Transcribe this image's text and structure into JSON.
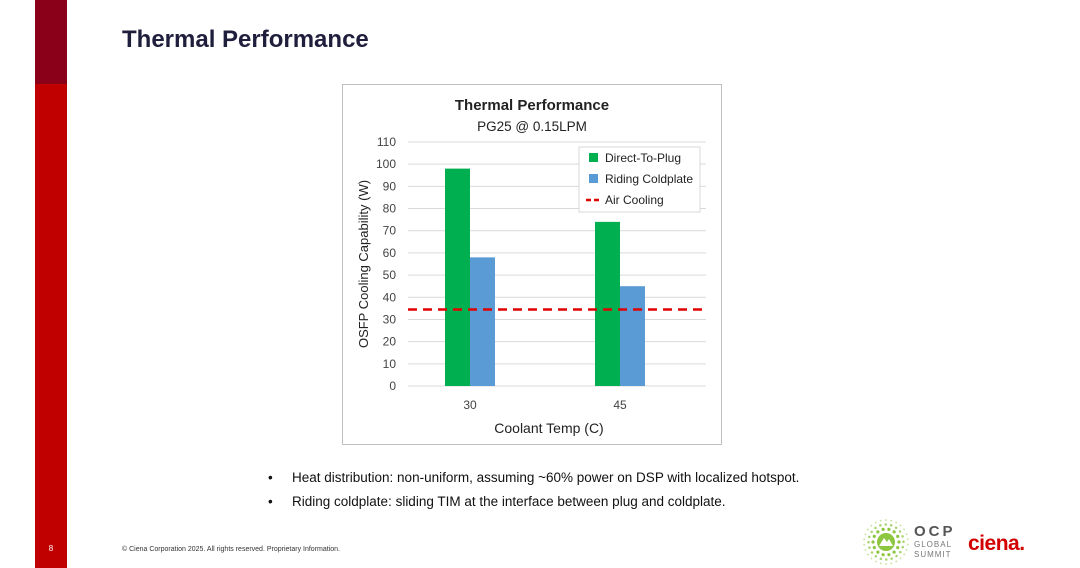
{
  "slide": {
    "title": "Thermal Performance",
    "page_number": "8",
    "footer": "© Ciena Corporation 2025. All rights reserved. Proprietary Information.",
    "bullets": [
      "Heat distribution: non-uniform, assuming ~60% power on DSP with localized hotspot.",
      "Riding coldplate: sliding TIM at the interface between plug and coldplate."
    ],
    "logos": {
      "ocp_word": "OCP",
      "ocp_line1": "GLOBAL",
      "ocp_line2": "SUMMIT",
      "brand": "ciena."
    }
  },
  "colors": {
    "accent_red": "#c00000",
    "accent_dark": "#8b0019",
    "series_green": "#00b050",
    "series_blue": "#5b9bd5",
    "air_cooling_red": "#e00000"
  },
  "chart_data": {
    "type": "bar",
    "title": "Thermal Performance",
    "subtitle": "PG25 @ 0.15LPM",
    "xlabel": "Coolant Temp (C)",
    "ylabel": "OSFP Cooling Capability (W)",
    "ylim": [
      0,
      110
    ],
    "yticks": [
      0,
      10,
      20,
      30,
      40,
      50,
      60,
      70,
      80,
      90,
      100,
      110
    ],
    "categories": [
      "30",
      "45"
    ],
    "series": [
      {
        "name": "Direct-To-Plug",
        "values": [
          98,
          74
        ]
      },
      {
        "name": "Riding Coldplate",
        "values": [
          58,
          45
        ]
      }
    ],
    "reference_lines": [
      {
        "name": "Air Cooling",
        "value": 34.5,
        "style": "dashed"
      }
    ],
    "grid": true,
    "legend": "top-right"
  }
}
